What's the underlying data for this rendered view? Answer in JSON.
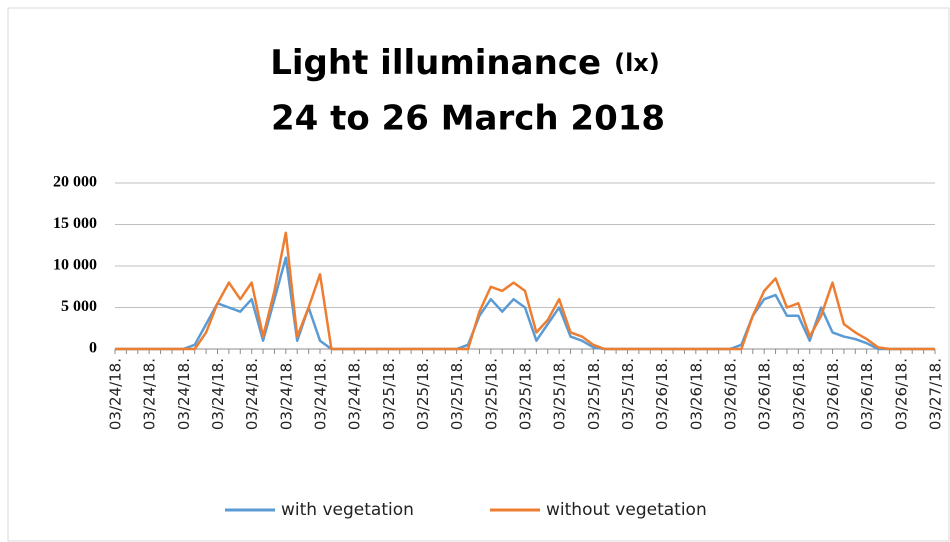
{
  "chart_data": {
    "type": "line",
    "title": "Light illuminance",
    "title_unit": "(lx)",
    "subtitle": "24 to 26 March 2018",
    "categories": [
      "03/24/18.",
      null,
      null,
      "03/24/18.",
      null,
      null,
      "03/24/18.",
      null,
      null,
      "03/24/18.",
      null,
      null,
      "03/24/18.",
      null,
      null,
      "03/24/18.",
      null,
      null,
      "03/24/18.",
      null,
      null,
      "03/24/18.",
      null,
      null,
      "03/25/18.",
      null,
      null,
      "03/25/18.",
      null,
      null,
      "03/25/18.",
      null,
      null,
      "03/25/18.",
      null,
      null,
      "03/25/18.",
      null,
      null,
      "03/25/18.",
      null,
      null,
      "03/25/18.",
      null,
      null,
      "03/25/18.",
      null,
      null,
      "03/26/18.",
      null,
      null,
      "03/26/18.",
      null,
      null,
      "03/26/18.",
      null,
      null,
      "03/26/18.",
      null,
      null,
      "03/26/18.",
      null,
      null,
      "03/26/18.",
      null,
      null,
      "03/26/18.",
      null,
      null,
      "03/26/18.",
      null,
      null,
      "03/27/18."
    ],
    "series": [
      {
        "name": "with vegetation",
        "color": "#5b9bd5",
        "values": [
          0,
          0,
          0,
          0,
          0,
          0,
          0,
          500,
          3000,
          5500,
          5000,
          4500,
          6000,
          1000,
          6000,
          11000,
          1000,
          5000,
          1000,
          0,
          0,
          0,
          0,
          0,
          0,
          0,
          0,
          0,
          0,
          0,
          0,
          500,
          4000,
          6000,
          4500,
          6000,
          5000,
          1000,
          3000,
          5000,
          1500,
          1000,
          200,
          0,
          0,
          0,
          0,
          0,
          0,
          0,
          0,
          0,
          0,
          0,
          0,
          500,
          4000,
          6000,
          6500,
          4000,
          4000,
          1000,
          5000,
          2000,
          1500,
          1200,
          700,
          0,
          0,
          0,
          0,
          0,
          0
        ]
      },
      {
        "name": "without vegetation",
        "color": "#ed7d31",
        "values": [
          0,
          0,
          0,
          0,
          0,
          0,
          0,
          0,
          2000,
          5500,
          8000,
          6000,
          8000,
          1500,
          7000,
          14000,
          1500,
          5000,
          9000,
          0,
          0,
          0,
          0,
          0,
          0,
          0,
          0,
          0,
          0,
          0,
          0,
          0,
          4500,
          7500,
          7000,
          8000,
          7000,
          2000,
          3500,
          6000,
          2000,
          1500,
          500,
          0,
          0,
          0,
          0,
          0,
          0,
          0,
          0,
          0,
          0,
          0,
          0,
          0,
          4000,
          7000,
          8500,
          5000,
          5500,
          1500,
          4000,
          8000,
          3000,
          2000,
          1200,
          200,
          0,
          0,
          0,
          0,
          0
        ]
      }
    ],
    "ylim": [
      0,
      20000
    ],
    "yticks": [
      0,
      {
        "value": 5000,
        "label": "5 000"
      },
      {
        "value": 10000,
        "label": "10 000"
      },
      {
        "value": 15000,
        "label": "15 000"
      },
      {
        "value": 20000,
        "label": "20 000"
      }
    ],
    "grid": true,
    "legend": "bottom"
  }
}
